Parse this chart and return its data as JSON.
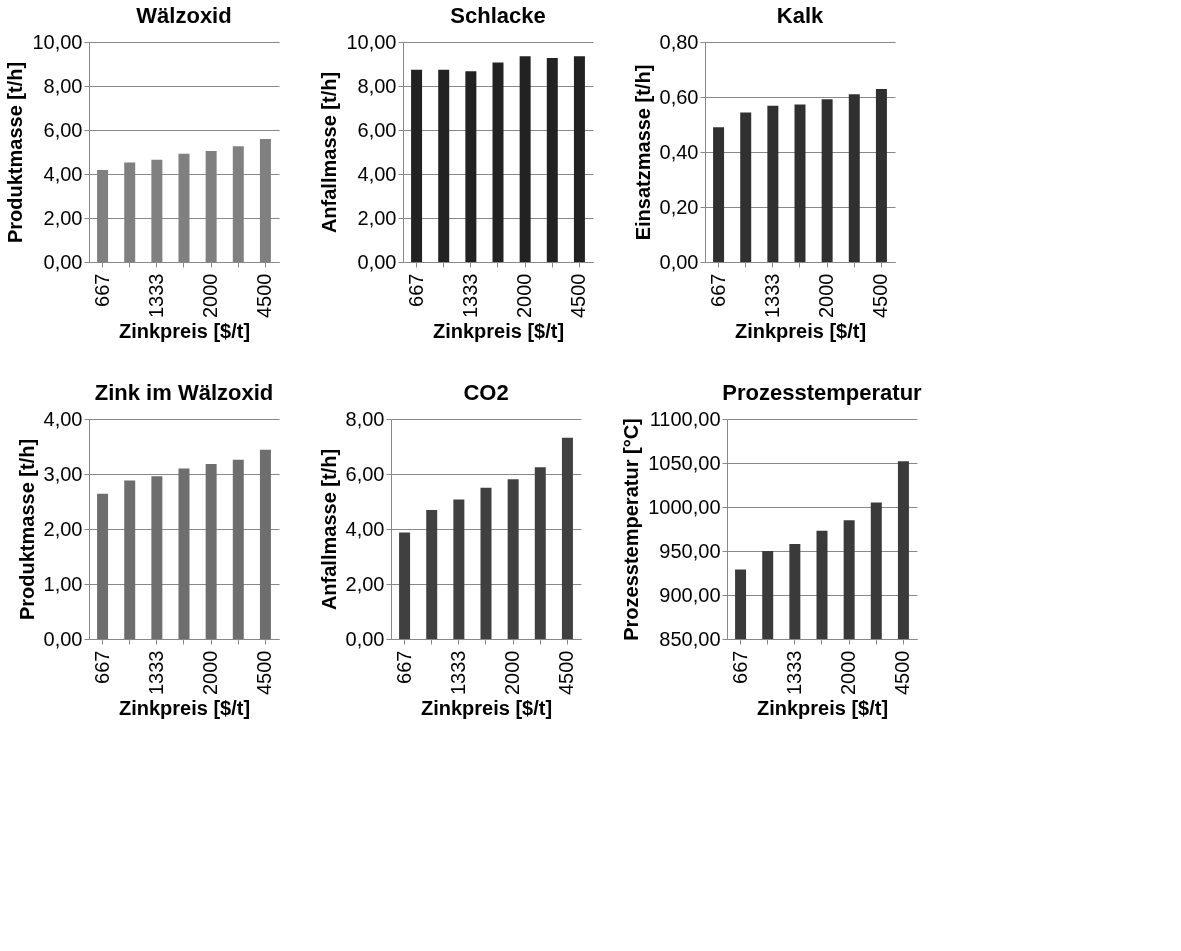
{
  "chart_data": [
    {
      "type": "bar",
      "title": "Wälzoxid",
      "xlabel": "Zinkpreis [$/t]",
      "ylabel": "Produktmasse [t/h]",
      "categories": [
        "667",
        null,
        "1333",
        null,
        "2000",
        null,
        "4500"
      ],
      "values": [
        4.18,
        4.52,
        4.65,
        4.92,
        5.05,
        5.26,
        5.59
      ],
      "color": "#808080",
      "ylim": [
        0,
        10
      ],
      "yticks": [
        {
          "value": 0,
          "label": "0,00"
        },
        {
          "value": 2,
          "label": "2,00"
        },
        {
          "value": 4,
          "label": "4,00"
        },
        {
          "value": 6,
          "label": "6,00"
        },
        {
          "value": 8,
          "label": "8,00"
        },
        {
          "value": 10,
          "label": "10,00"
        }
      ],
      "grid": "y"
    },
    {
      "type": "bar",
      "title": "Schlacke",
      "xlabel": "Zinkpreis [$/t]",
      "ylabel": "Anfallmasse [t/h]",
      "categories": [
        "667",
        null,
        "1333",
        null,
        "2000",
        null,
        "4500"
      ],
      "values": [
        8.74,
        8.74,
        8.67,
        9.07,
        9.35,
        9.27,
        9.35
      ],
      "color": "#222222",
      "ylim": [
        0,
        10
      ],
      "yticks": [
        {
          "value": 0,
          "label": "0,00"
        },
        {
          "value": 2,
          "label": "2,00"
        },
        {
          "value": 4,
          "label": "4,00"
        },
        {
          "value": 6,
          "label": "6,00"
        },
        {
          "value": 8,
          "label": "8,00"
        },
        {
          "value": 10,
          "label": "10,00"
        }
      ],
      "grid": "y"
    },
    {
      "type": "bar",
      "title": "Kalk",
      "xlabel": "Zinkpreis [$/t]",
      "ylabel": "Einsatzmasse [t/h]",
      "categories": [
        "667",
        null,
        "1333",
        null,
        "2000",
        null,
        "4500"
      ],
      "values": [
        0.49,
        0.544,
        0.568,
        0.573,
        0.592,
        0.61,
        0.629
      ],
      "color": "#303030",
      "ylim": [
        0,
        0.8
      ],
      "yticks": [
        {
          "value": 0,
          "label": "0,00"
        },
        {
          "value": 0.2,
          "label": "0,20"
        },
        {
          "value": 0.4,
          "label": "0,40"
        },
        {
          "value": 0.6,
          "label": "0,60"
        },
        {
          "value": 0.8,
          "label": "0,80"
        }
      ],
      "grid": "y"
    },
    {
      "type": "bar",
      "title": "Zink im Wälzoxid",
      "xlabel": "Zinkpreis [$/t]",
      "ylabel": "Produktmasse [t/h]",
      "categories": [
        "667",
        null,
        "1333",
        null,
        "2000",
        null,
        "4500"
      ],
      "values": [
        2.64,
        2.88,
        2.96,
        3.1,
        3.18,
        3.26,
        3.44
      ],
      "color": "#6e6e6e",
      "ylim": [
        0,
        4
      ],
      "yticks": [
        {
          "value": 0,
          "label": "0,00"
        },
        {
          "value": 1,
          "label": "1,00"
        },
        {
          "value": 2,
          "label": "2,00"
        },
        {
          "value": 3,
          "label": "3,00"
        },
        {
          "value": 4,
          "label": "4,00"
        }
      ],
      "grid": "y"
    },
    {
      "type": "bar",
      "title": "CO2",
      "xlabel": "Zinkpreis [$/t]",
      "ylabel": "Anfallmasse [t/h]",
      "categories": [
        "667",
        null,
        "1333",
        null,
        "2000",
        null,
        "4500"
      ],
      "values": [
        3.87,
        4.69,
        5.07,
        5.5,
        5.81,
        6.25,
        7.32
      ],
      "color": "#404040",
      "ylim": [
        0,
        8
      ],
      "yticks": [
        {
          "value": 0,
          "label": "0,00"
        },
        {
          "value": 2,
          "label": "2,00"
        },
        {
          "value": 4,
          "label": "4,00"
        },
        {
          "value": 6,
          "label": "6,00"
        },
        {
          "value": 8,
          "label": "8,00"
        }
      ],
      "grid": "y"
    },
    {
      "type": "bar",
      "title": "Prozesstemperatur",
      "xlabel": "Zinkpreis [$/t]",
      "ylabel": "Prozesstemperatur [°C]",
      "categories": [
        "667",
        null,
        "1333",
        null,
        "2000",
        null,
        "4500"
      ],
      "values": [
        929,
        950,
        958,
        973,
        985,
        1005,
        1052
      ],
      "color": "#3a3a3a",
      "ylim": [
        850,
        1100
      ],
      "yticks": [
        {
          "value": 850,
          "label": "850,00"
        },
        {
          "value": 900,
          "label": "900,00"
        },
        {
          "value": 950,
          "label": "950,00"
        },
        {
          "value": 1000,
          "label": "1000,00"
        },
        {
          "value": 1050,
          "label": "1050,00"
        },
        {
          "value": 1100,
          "label": "1100,00"
        }
      ],
      "grid": "y"
    }
  ]
}
